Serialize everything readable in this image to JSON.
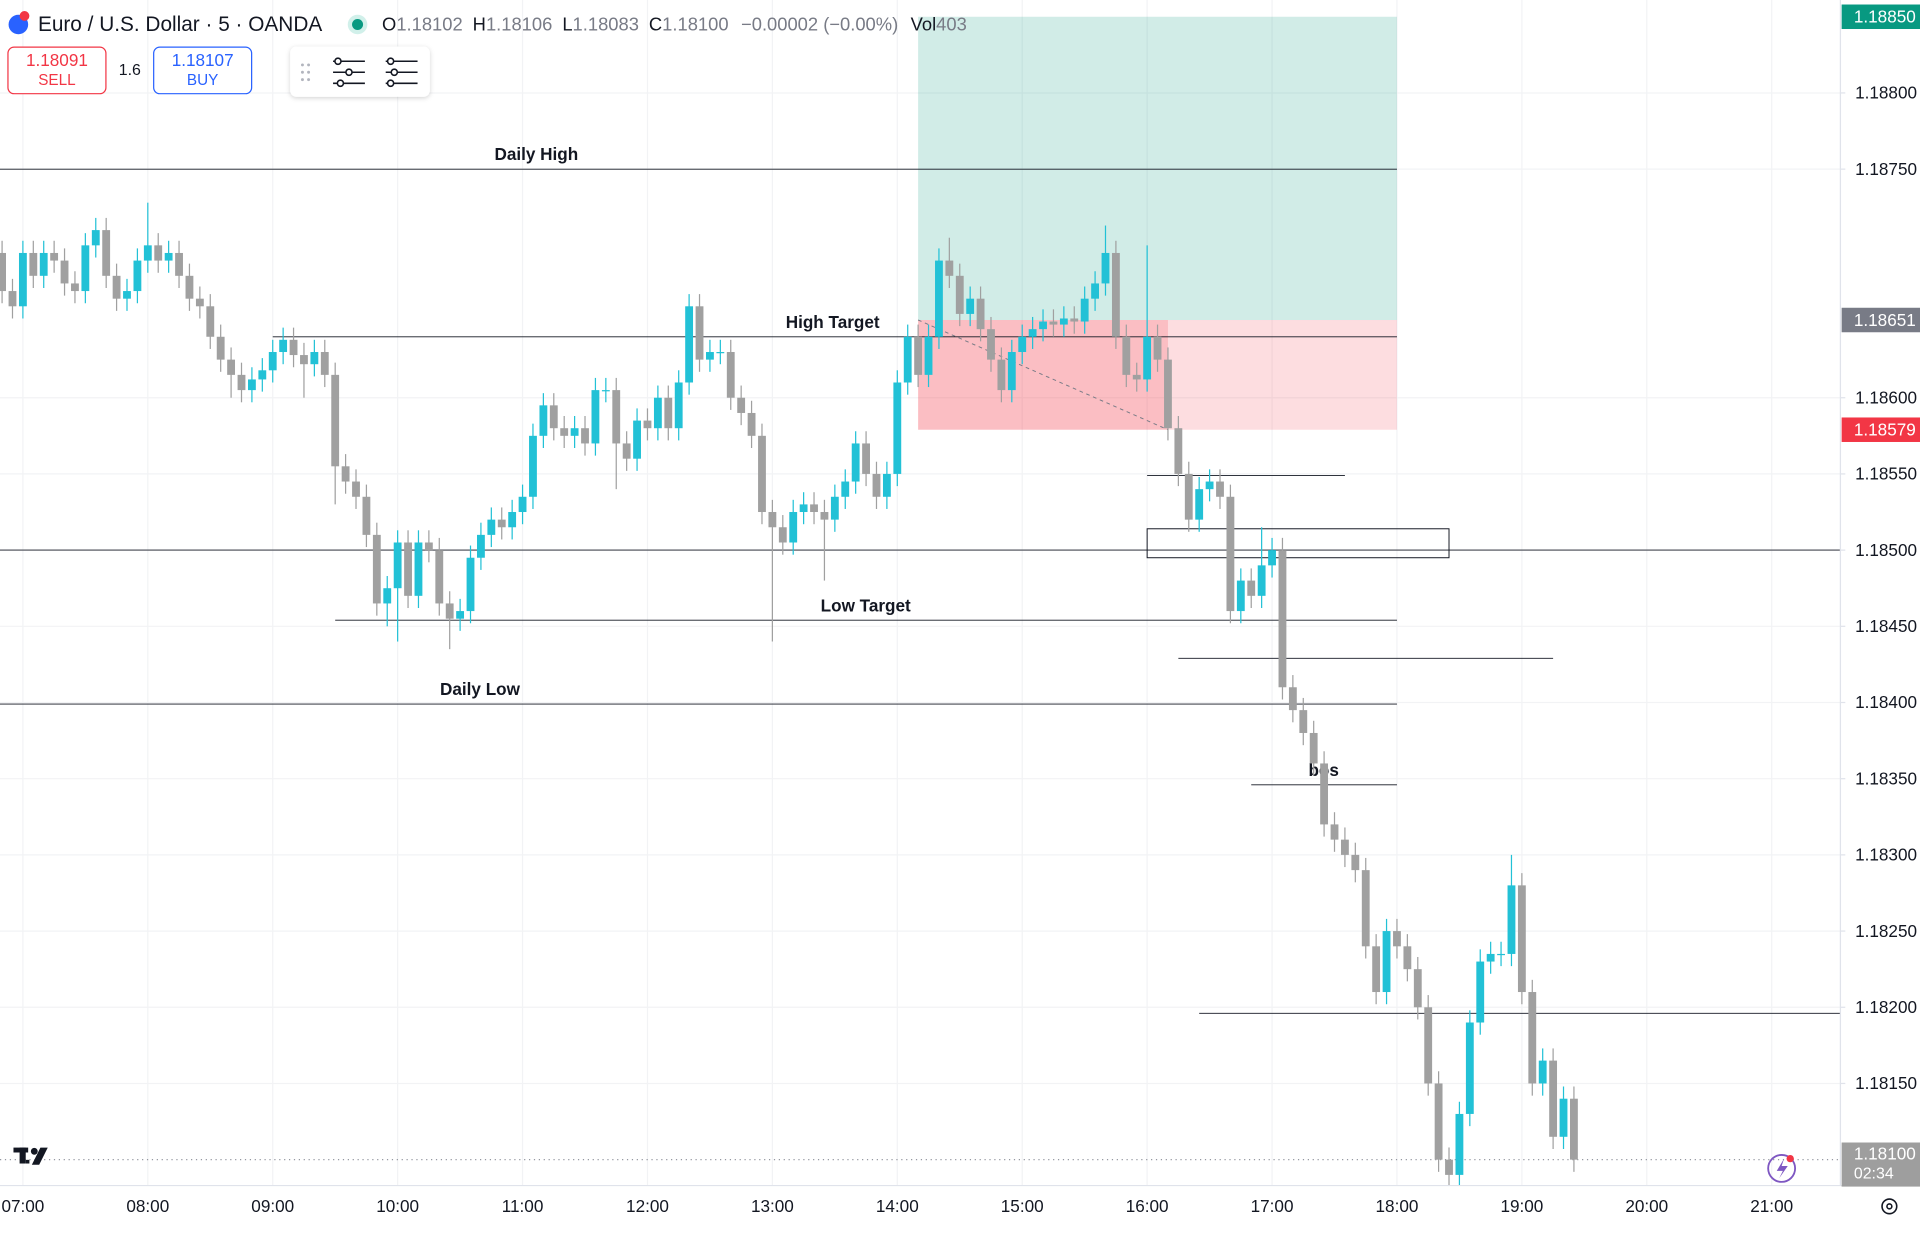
{
  "header": {
    "symbol": "Euro / U.S. Dollar · 5 · OANDA",
    "ohlc": [
      {
        "key": "O",
        "value": "1.18102"
      },
      {
        "key": "H",
        "value": "1.18106"
      },
      {
        "key": "L",
        "value": "1.18083"
      },
      {
        "key": "C",
        "value": "1.18100"
      }
    ],
    "change": "−0.00002 (−0.00%)",
    "volume_key": "Vol",
    "volume": "403"
  },
  "trade": {
    "sell_price": "1.18091",
    "sell": "SELL",
    "spread": "1.6",
    "buy_price": "1.18107",
    "buy": "BUY"
  },
  "chart_data": {
    "type": "candlestick",
    "up_color": "#22c1d6",
    "down_color": "#a0a0a0",
    "grid": true,
    "x": [
      "06:50",
      "06:55",
      "07:00",
      "07:05",
      "07:10",
      "07:15",
      "07:20",
      "07:25",
      "07:30",
      "07:35",
      "07:40",
      "07:45",
      "07:50",
      "07:55",
      "08:00",
      "08:05",
      "08:10",
      "08:15",
      "08:20",
      "08:25",
      "08:30",
      "08:35",
      "08:40",
      "08:45",
      "08:50",
      "08:55",
      "09:00",
      "09:05",
      "09:10",
      "09:15",
      "09:20",
      "09:25",
      "09:30",
      "09:35",
      "09:40",
      "09:45",
      "09:50",
      "09:55",
      "10:00",
      "10:05",
      "10:10",
      "10:15",
      "10:20",
      "10:25",
      "10:30",
      "10:35",
      "10:40",
      "10:45",
      "10:50",
      "10:55",
      "11:00",
      "11:05",
      "11:10",
      "11:15",
      "11:20",
      "11:25",
      "11:30",
      "11:35",
      "11:40",
      "11:45",
      "11:50",
      "11:55",
      "12:00",
      "12:05",
      "12:10",
      "12:15",
      "12:20",
      "12:25",
      "12:30",
      "12:35",
      "12:40",
      "12:45",
      "12:50",
      "12:55",
      "13:00",
      "13:05",
      "13:10",
      "13:15",
      "13:20",
      "13:25",
      "13:30",
      "13:35",
      "13:40",
      "13:45",
      "13:50",
      "13:55",
      "14:00",
      "14:05",
      "14:10",
      "14:15",
      "14:20",
      "14:25",
      "14:30",
      "14:35",
      "14:40",
      "14:45",
      "14:50",
      "14:55",
      "15:00",
      "15:05",
      "15:10",
      "15:15",
      "15:20",
      "15:25",
      "15:30",
      "15:35",
      "15:40",
      "15:45",
      "15:50",
      "15:55",
      "16:00",
      "16:05",
      "16:10",
      "16:15",
      "16:20",
      "16:25",
      "16:30",
      "16:35",
      "16:40",
      "16:45",
      "16:50",
      "16:55",
      "17:00",
      "17:05",
      "17:10",
      "17:15",
      "17:20",
      "17:25",
      "17:30",
      "17:35",
      "17:40",
      "17:45",
      "17:50",
      "17:55",
      "18:00",
      "18:05",
      "18:10",
      "18:15",
      "18:20",
      "18:25",
      "18:30",
      "18:35",
      "18:40",
      "18:45",
      "18:50",
      "18:55",
      "19:00",
      "19:05",
      "19:10",
      "19:15",
      "19:20",
      "19:25"
    ],
    "open": [
      1.18695,
      1.1867,
      1.1866,
      1.18695,
      1.1868,
      1.18695,
      1.1869,
      1.18675,
      1.1867,
      1.187,
      1.1871,
      1.1868,
      1.18665,
      1.1867,
      1.1869,
      1.187,
      1.1869,
      1.18695,
      1.1868,
      1.18665,
      1.1866,
      1.1864,
      1.18625,
      1.18615,
      1.18605,
      1.18612,
      1.18618,
      1.1863,
      1.18638,
      1.18628,
      1.18622,
      1.1863,
      1.18615,
      1.18555,
      1.18545,
      1.18535,
      1.1851,
      1.18465,
      1.18475,
      1.18505,
      1.1847,
      1.18505,
      1.185,
      1.18465,
      1.18455,
      1.1846,
      1.18495,
      1.1851,
      1.1852,
      1.18515,
      1.18525,
      1.18535,
      1.18575,
      1.18595,
      1.1858,
      1.18575,
      1.1858,
      1.1857,
      1.18605,
      1.18605,
      1.1857,
      1.1856,
      1.18585,
      1.1858,
      1.186,
      1.1858,
      1.1861,
      1.1866,
      1.18625,
      1.1863,
      1.1863,
      1.186,
      1.1859,
      1.18575,
      1.18525,
      1.18515,
      1.18505,
      1.18525,
      1.1853,
      1.18525,
      1.1852,
      1.18535,
      1.18545,
      1.1857,
      1.1855,
      1.18535,
      1.1855,
      1.1861,
      1.1864,
      1.18615,
      1.1864,
      1.1869,
      1.1868,
      1.18655,
      1.18665,
      1.18645,
      1.18625,
      1.18605,
      1.1863,
      1.1864,
      1.18645,
      1.1865,
      1.18648,
      1.18652,
      1.1865,
      1.18665,
      1.18675,
      1.18695,
      1.1864,
      1.18615,
      1.18612,
      1.1864,
      1.18625,
      1.1858,
      1.1855,
      1.1852,
      1.1854,
      1.18545,
      1.18535,
      1.1846,
      1.1848,
      1.1847,
      1.1849,
      1.185,
      1.1841,
      1.18395,
      1.1838,
      1.1836,
      1.1832,
      1.1831,
      1.183,
      1.1829,
      1.1824,
      1.1821,
      1.1825,
      1.1824,
      1.18225,
      1.182,
      1.1815,
      1.181,
      1.1809,
      1.1813,
      1.1819,
      1.1823,
      1.18235,
      1.18235,
      1.1828,
      1.1821,
      1.1815,
      1.18165,
      1.18115,
      1.1814
    ],
    "high": [
      1.18703,
      1.18678,
      1.18703,
      1.18703,
      1.18703,
      1.18703,
      1.18698,
      1.18683,
      1.18708,
      1.18718,
      1.18718,
      1.18688,
      1.18678,
      1.18698,
      1.18728,
      1.18708,
      1.18703,
      1.18703,
      1.18688,
      1.18673,
      1.18668,
      1.18648,
      1.18633,
      1.18623,
      1.1862,
      1.18626,
      1.18638,
      1.18646,
      1.18646,
      1.18636,
      1.18638,
      1.18638,
      1.18623,
      1.18563,
      1.18553,
      1.18543,
      1.18518,
      1.18483,
      1.18513,
      1.18513,
      1.18513,
      1.18513,
      1.18508,
      1.18473,
      1.18468,
      1.18503,
      1.18518,
      1.18528,
      1.18528,
      1.18533,
      1.18543,
      1.18583,
      1.18603,
      1.18603,
      1.18588,
      1.18588,
      1.18588,
      1.18613,
      1.18613,
      1.18613,
      1.18578,
      1.18593,
      1.18593,
      1.18608,
      1.18608,
      1.18618,
      1.18668,
      1.18668,
      1.18638,
      1.18638,
      1.18638,
      1.18608,
      1.18598,
      1.18583,
      1.18533,
      1.18523,
      1.18533,
      1.18538,
      1.18538,
      1.18533,
      1.18543,
      1.18553,
      1.18578,
      1.18578,
      1.18558,
      1.18558,
      1.18618,
      1.18648,
      1.18648,
      1.18648,
      1.18698,
      1.18705,
      1.18688,
      1.18673,
      1.18673,
      1.18653,
      1.18633,
      1.18638,
      1.18648,
      1.18653,
      1.18658,
      1.18658,
      1.1866,
      1.1866,
      1.18673,
      1.18683,
      1.18713,
      1.18703,
      1.18648,
      1.18623,
      1.187,
      1.18648,
      1.18633,
      1.18588,
      1.18558,
      1.18548,
      1.18553,
      1.18553,
      1.18543,
      1.18488,
      1.18488,
      1.18515,
      1.18508,
      1.18508,
      1.18418,
      1.18403,
      1.18388,
      1.18368,
      1.18328,
      1.18318,
      1.18308,
      1.18298,
      1.18248,
      1.18258,
      1.18258,
      1.18248,
      1.18233,
      1.18208,
      1.18158,
      1.18108,
      1.18138,
      1.18198,
      1.18238,
      1.18243,
      1.18243,
      1.183,
      1.18288,
      1.18218,
      1.18173,
      1.18173,
      1.18148,
      1.18148
    ],
    "low": [
      1.18662,
      1.18652,
      1.18652,
      1.18672,
      1.18672,
      1.18682,
      1.18667,
      1.18662,
      1.18662,
      1.18692,
      1.18672,
      1.18657,
      1.18657,
      1.18662,
      1.18682,
      1.18682,
      1.18682,
      1.18672,
      1.18657,
      1.18652,
      1.18632,
      1.18617,
      1.186,
      1.18597,
      1.18597,
      1.18604,
      1.1861,
      1.18622,
      1.1862,
      1.186,
      1.18614,
      1.18607,
      1.1853,
      1.18537,
      1.18527,
      1.18502,
      1.18457,
      1.1845,
      1.1844,
      1.18462,
      1.18462,
      1.18492,
      1.18457,
      1.18435,
      1.18447,
      1.18452,
      1.18487,
      1.18502,
      1.18507,
      1.18507,
      1.18517,
      1.18527,
      1.18567,
      1.18572,
      1.18567,
      1.18567,
      1.18562,
      1.18562,
      1.18597,
      1.1854,
      1.18552,
      1.18552,
      1.18572,
      1.18572,
      1.18572,
      1.18572,
      1.18602,
      1.18617,
      1.18617,
      1.18622,
      1.18592,
      1.18582,
      1.18567,
      1.18517,
      1.1844,
      1.18497,
      1.18497,
      1.18517,
      1.18517,
      1.1848,
      1.18512,
      1.18527,
      1.18537,
      1.18542,
      1.18527,
      1.18527,
      1.18542,
      1.18602,
      1.18607,
      1.18607,
      1.18632,
      1.18672,
      1.18647,
      1.18647,
      1.18637,
      1.18617,
      1.18597,
      1.18597,
      1.18622,
      1.18632,
      1.18637,
      1.1864,
      1.1864,
      1.18642,
      1.18642,
      1.18657,
      1.18667,
      1.18632,
      1.18607,
      1.18604,
      1.18604,
      1.18617,
      1.18572,
      1.18542,
      1.18512,
      1.18512,
      1.18532,
      1.18527,
      1.18452,
      1.18452,
      1.18462,
      1.18462,
      1.18482,
      1.18402,
      1.18387,
      1.18372,
      1.18352,
      1.18312,
      1.18302,
      1.18292,
      1.18282,
      1.18232,
      1.18202,
      1.18202,
      1.18232,
      1.18217,
      1.18192,
      1.18142,
      1.18092,
      1.18082,
      1.18082,
      1.18122,
      1.18182,
      1.18222,
      1.18227,
      1.18227,
      1.18202,
      1.18142,
      1.18142,
      1.18107,
      1.18107,
      1.18092
    ],
    "close": [
      1.1867,
      1.1866,
      1.18695,
      1.1868,
      1.18695,
      1.1869,
      1.18675,
      1.1867,
      1.187,
      1.1871,
      1.1868,
      1.18665,
      1.1867,
      1.1869,
      1.187,
      1.1869,
      1.18695,
      1.1868,
      1.18665,
      1.1866,
      1.1864,
      1.18625,
      1.18615,
      1.18605,
      1.18612,
      1.18618,
      1.1863,
      1.18638,
      1.18628,
      1.18622,
      1.1863,
      1.18615,
      1.18555,
      1.18545,
      1.18535,
      1.1851,
      1.18465,
      1.18475,
      1.18505,
      1.1847,
      1.18505,
      1.185,
      1.18465,
      1.18455,
      1.1846,
      1.18495,
      1.1851,
      1.1852,
      1.18515,
      1.18525,
      1.18535,
      1.18575,
      1.18595,
      1.1858,
      1.18575,
      1.1858,
      1.1857,
      1.18605,
      1.18605,
      1.1857,
      1.1856,
      1.18585,
      1.1858,
      1.186,
      1.1858,
      1.1861,
      1.1866,
      1.18625,
      1.1863,
      1.1863,
      1.186,
      1.1859,
      1.18575,
      1.18525,
      1.18515,
      1.18505,
      1.18525,
      1.1853,
      1.18525,
      1.1852,
      1.18535,
      1.18545,
      1.1857,
      1.1855,
      1.18535,
      1.1855,
      1.1861,
      1.1864,
      1.18615,
      1.1864,
      1.1869,
      1.1868,
      1.18655,
      1.18665,
      1.18645,
      1.18625,
      1.18605,
      1.1863,
      1.1864,
      1.18645,
      1.1865,
      1.18648,
      1.18652,
      1.1865,
      1.18665,
      1.18675,
      1.18695,
      1.1864,
      1.18615,
      1.18612,
      1.1864,
      1.18625,
      1.1858,
      1.1855,
      1.1852,
      1.1854,
      1.18545,
      1.18535,
      1.1846,
      1.1848,
      1.1847,
      1.1849,
      1.185,
      1.1841,
      1.18395,
      1.1838,
      1.1836,
      1.1832,
      1.1831,
      1.183,
      1.1829,
      1.1824,
      1.1821,
      1.1825,
      1.1824,
      1.18225,
      1.182,
      1.1815,
      1.181,
      1.1809,
      1.1813,
      1.1819,
      1.1823,
      1.18235,
      1.18235,
      1.1828,
      1.1821,
      1.1815,
      1.18165,
      1.18115,
      1.1814,
      1.181
    ],
    "xlim": [
      "06:49",
      "21:33"
    ],
    "xticks": [
      "07:00",
      "08:00",
      "09:00",
      "10:00",
      "11:00",
      "12:00",
      "13:00",
      "14:00",
      "15:00",
      "16:00",
      "17:00",
      "18:00",
      "19:00",
      "20:00",
      "21:00"
    ],
    "ylim": [
      1.18083,
      1.18861
    ],
    "yticks": [
      {
        "value": 1.1815,
        "label": "1.18150"
      },
      {
        "value": 1.182,
        "label": "1.18200"
      },
      {
        "value": 1.1825,
        "label": "1.18250"
      },
      {
        "value": 1.183,
        "label": "1.18300"
      },
      {
        "value": 1.1835,
        "label": "1.18350"
      },
      {
        "value": 1.184,
        "label": "1.18400"
      },
      {
        "value": 1.1845,
        "label": "1.18450"
      },
      {
        "value": 1.185,
        "label": "1.18500"
      },
      {
        "value": 1.1855,
        "label": "1.18550"
      },
      {
        "value": 1.186,
        "label": "1.18600"
      },
      {
        "value": 1.1875,
        "label": "1.18750"
      },
      {
        "value": 1.188,
        "label": "1.18800"
      }
    ],
    "lines": [
      {
        "label": "Daily High",
        "value": 1.1875,
        "to": "18:00"
      },
      {
        "label": "High Target",
        "value": 1.1864,
        "from": "09:00",
        "to": "18:00"
      },
      {
        "value": 1.185
      },
      {
        "label": "Low Target",
        "value": 1.18454,
        "from": "09:30",
        "to": "18:00"
      },
      {
        "label": "Daily Low",
        "value": 1.18399,
        "to": "18:00"
      },
      {
        "value": 1.18429,
        "from": "16:15",
        "to": "19:15"
      },
      {
        "value": 1.18549,
        "from": "16:00",
        "to": "17:35"
      },
      {
        "label": "bos",
        "value": 1.18346,
        "from": "16:50",
        "to": "18:00"
      },
      {
        "value": 1.18196,
        "from": "16:25"
      }
    ],
    "box": {
      "from": "16:00",
      "to": "18:25",
      "top": 1.18514,
      "bottom": 1.18495
    },
    "position": {
      "from": "14:10",
      "split": "16:10",
      "to": "18:00",
      "target": {
        "value": 1.1885,
        "label": "1.18850"
      },
      "entry": {
        "value": 1.18651,
        "label": "1.18651"
      },
      "stop": {
        "value": 1.18579,
        "label": "1.18579"
      }
    },
    "last": {
      "value": 1.181,
      "label": "1.18100",
      "countdown": "02:34"
    }
  }
}
